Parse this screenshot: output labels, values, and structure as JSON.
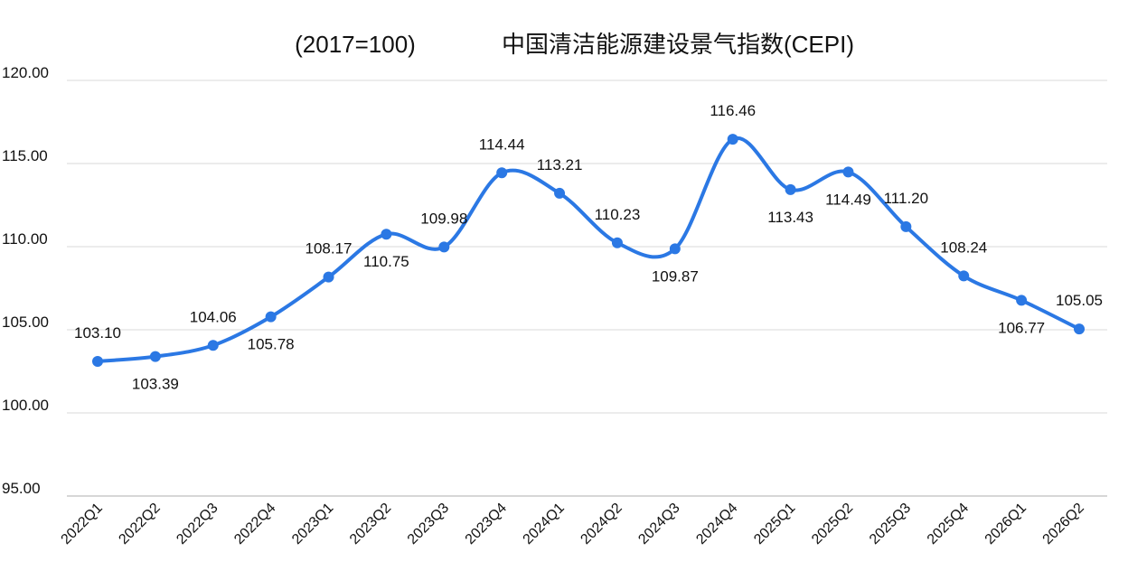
{
  "chart_data": {
    "type": "line",
    "title_left": "(2017=100)",
    "title": "中国清洁能源建设景气指数(CEPI)",
    "categories": [
      "2022Q1",
      "2022Q2",
      "2022Q3",
      "2022Q4",
      "2023Q1",
      "2023Q2",
      "2023Q3",
      "2023Q4",
      "2024Q1",
      "2024Q2",
      "2024Q3",
      "2024Q4",
      "2025Q1",
      "2025Q2",
      "2025Q3",
      "2025Q4",
      "2026Q1",
      "2026Q2"
    ],
    "values": [
      103.1,
      103.39,
      104.06,
      105.78,
      108.17,
      110.75,
      109.98,
      114.44,
      113.21,
      110.23,
      109.87,
      116.46,
      113.43,
      114.49,
      111.2,
      108.24,
      106.77,
      105.05
    ],
    "data_labels": [
      "103.10",
      "103.39",
      "104.06",
      "105.78",
      "108.17",
      "110.75",
      "109.98",
      "114.44",
      "113.21",
      "110.23",
      "109.87",
      "116.46",
      "113.43",
      "114.49",
      "111.20",
      "108.24",
      "106.77",
      "105.05"
    ],
    "yticks": [
      "95.00",
      "100.00",
      "105.00",
      "110.00",
      "115.00",
      "120.00"
    ],
    "ylim": [
      95,
      120
    ],
    "grid": true,
    "smooth": true,
    "line_color": "#2b78e4",
    "marker_color": "#2b78e4"
  }
}
